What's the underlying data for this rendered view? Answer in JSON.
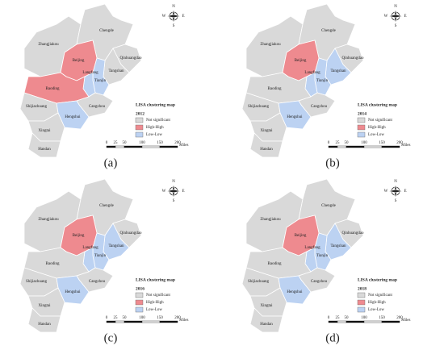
{
  "compass": {
    "north": "N",
    "south": "S",
    "east": "E",
    "west": "W"
  },
  "legend": {
    "title": "LISA clustering map",
    "items": [
      {
        "name": "Not significant",
        "color": "#d9d9d9"
      },
      {
        "name": "High-High",
        "color": "#ee8a8f"
      },
      {
        "name": "Low-Low",
        "color": "#bcd2f2"
      }
    ]
  },
  "scale": {
    "ticks": [
      0,
      25,
      50,
      100,
      150,
      200
    ],
    "unit": "Miles"
  },
  "cities": [
    "Zhangjiakou",
    "Chengde",
    "Beijing",
    "Qinhuangdao",
    "Tangshan",
    "Tianjin",
    "Langfang",
    "Baoding",
    "Cangzhou",
    "Shijiazhuang",
    "Hengshui",
    "Xingtai",
    "Handan"
  ],
  "panels": [
    {
      "label": "(a)",
      "year": "2012",
      "high_high": [
        "Beijing",
        "Baoding"
      ],
      "low_low": [
        "Tianjin",
        "Langfang",
        "Hengshui"
      ]
    },
    {
      "label": "(b)",
      "year": "2014",
      "high_high": [
        "Beijing"
      ],
      "low_low": [
        "Tianjin",
        "Tangshan",
        "Langfang",
        "Hengshui"
      ]
    },
    {
      "label": "(c)",
      "year": "2016",
      "high_high": [
        "Beijing"
      ],
      "low_low": [
        "Tianjin",
        "Tangshan",
        "Langfang",
        "Hengshui"
      ]
    },
    {
      "label": "(d)",
      "year": "2018",
      "high_high": [
        "Beijing"
      ],
      "low_low": [
        "Tianjin",
        "Tangshan",
        "Langfang",
        "Hengshui"
      ]
    }
  ]
}
